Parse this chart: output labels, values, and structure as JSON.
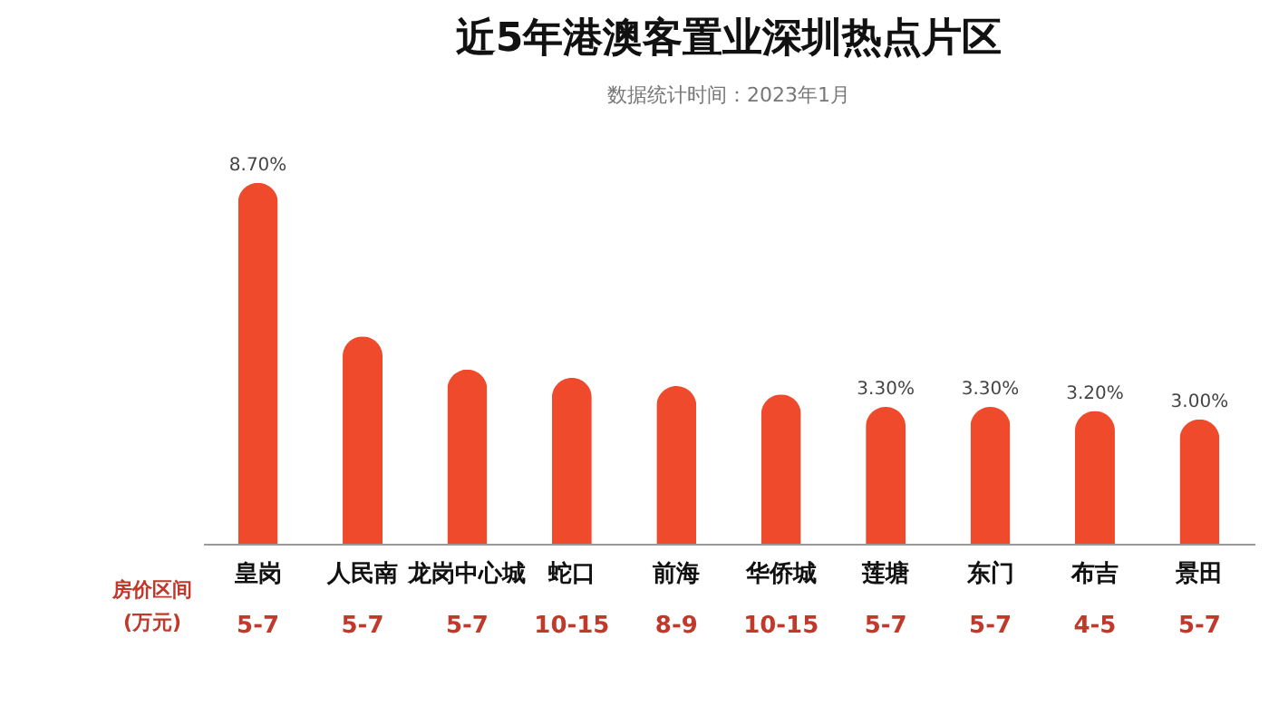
{
  "chart_data": {
    "type": "bar",
    "title": "近5年港澳客置业深圳热点片区",
    "subtitle": "数据统计时间：2023年1月",
    "categories": [
      "皇岗",
      "人民南",
      "龙岗中心城",
      "蛇口",
      "前海",
      "华侨城",
      "莲塘",
      "东门",
      "布吉",
      "景田"
    ],
    "values": [
      8.7,
      5.0,
      4.2,
      4.0,
      3.8,
      3.6,
      3.3,
      3.3,
      3.2,
      3.0
    ],
    "value_labels": [
      "8.70%",
      null,
      null,
      null,
      null,
      null,
      "3.30%",
      "3.30%",
      "3.20%",
      "3.00%"
    ],
    "color": "#ef4a2c",
    "grid": false,
    "annotations": [
      "房价区间\n(万元)",
      "5-7",
      "5-7",
      "5-7",
      "10-15",
      "8-9",
      "10-15",
      "5-7",
      "5-7",
      "4-5",
      "5-7"
    ]
  }
}
